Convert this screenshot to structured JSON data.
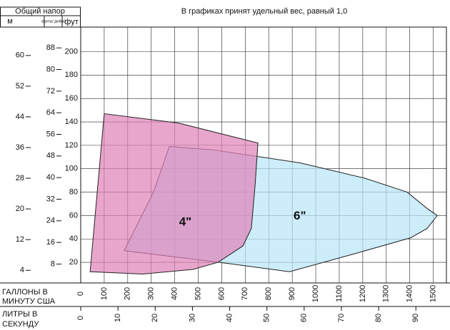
{
  "chart_data": {
    "type": "polygon",
    "title": "В графиках принят удельный вес, равный 1,0",
    "header": "Общий напор",
    "ylabel": "фут",
    "ylim": [
      2.4,
      221
    ],
    "yticks": [
      20,
      40,
      60,
      80,
      100,
      120,
      140,
      160,
      180,
      200
    ],
    "y_m": {
      "label": "м",
      "lim": [
        0.7,
        67.4
      ],
      "ticks": [
        4,
        12,
        20,
        28,
        36,
        44,
        52,
        60
      ]
    },
    "y_psi": {
      "label": "фунты/ дюйм2",
      "lim": [
        1.0,
        95.7
      ],
      "ticks": [
        8,
        16,
        24,
        32,
        40,
        48,
        56,
        64,
        72,
        80,
        88
      ]
    },
    "xlabel": [
      "ГАЛЛОНЫ В",
      "МИНУТУ США"
    ],
    "xlim": [
      0,
      1556
    ],
    "xticks": [
      0,
      100,
      200,
      300,
      400,
      500,
      600,
      700,
      800,
      900,
      1000,
      1100,
      1200,
      1300,
      1400,
      1500
    ],
    "x_lps": {
      "label": [
        "ЛИТРЫ В",
        "СЕКУНДУ"
      ],
      "lim": [
        0,
        98.2
      ],
      "ticks": [
        0,
        10,
        20,
        30,
        40,
        50,
        60,
        70,
        80,
        90
      ]
    },
    "grid": true,
    "series": [
      {
        "name": "6\"",
        "color": "#b8e6f8",
        "x": [
          377,
          568,
          933,
          1207,
          1389,
          1474,
          1517,
          1474,
          1404,
          1176,
          888,
          629,
          185,
          310
        ],
        "values": [
          119,
          116,
          105,
          92,
          80,
          66,
          60,
          49,
          41,
          28,
          12,
          19,
          30,
          80
        ]
      },
      {
        "name": "4\"",
        "color": "#e080b8",
        "x": [
          40,
          100,
          416,
          754,
          742,
          726,
          690,
          584,
          477,
          264
        ],
        "values": [
          12,
          147,
          139,
          122,
          86,
          49,
          34,
          20,
          14,
          10
        ]
      }
    ]
  }
}
